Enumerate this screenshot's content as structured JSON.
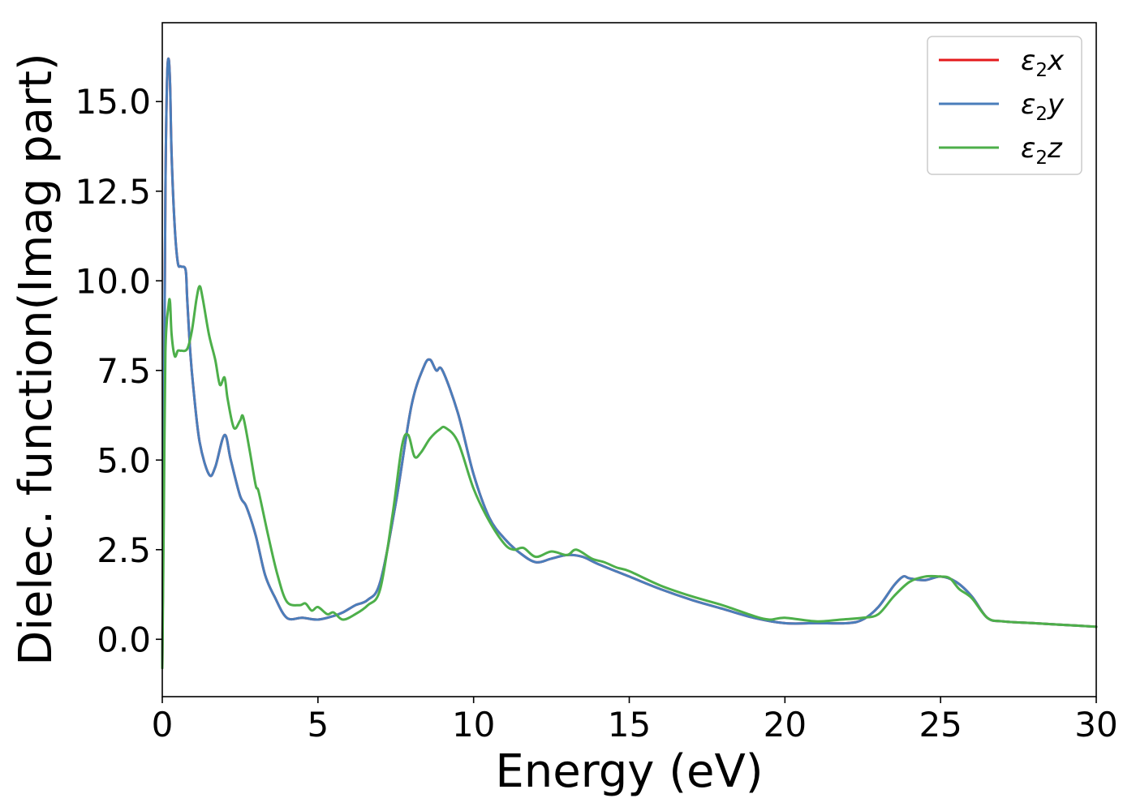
{
  "chart_data": {
    "type": "line",
    "title": "",
    "xlabel": "Energy (eV)",
    "ylabel": "Dielec. function(Imag part)",
    "xlim": [
      0,
      30
    ],
    "ylim": [
      -1.6,
      17.2
    ],
    "xticks": [
      0,
      5,
      10,
      15,
      20,
      25,
      30
    ],
    "xtick_labels": [
      "0",
      "5",
      "10",
      "15",
      "20",
      "25",
      "30"
    ],
    "yticks": [
      0.0,
      2.5,
      5.0,
      7.5,
      10.0,
      12.5,
      15.0
    ],
    "ytick_labels": [
      "0.0",
      "2.5",
      "5.0",
      "7.5",
      "10.0",
      "12.5",
      "15.0"
    ],
    "grid": false,
    "legend_position": "top-right",
    "series": [
      {
        "name": "ε2x",
        "legend_main": "ε",
        "legend_sub": "2",
        "legend_tail": "x",
        "color": "#e41a1c",
        "x": [
          0,
          0.05,
          0.1,
          0.15,
          0.2,
          0.25,
          0.3,
          0.4,
          0.5,
          0.6,
          0.75,
          0.8,
          0.9,
          1.0,
          1.2,
          1.5,
          1.7,
          2.0,
          2.2,
          2.5,
          2.7,
          3.0,
          3.3,
          3.6,
          4.0,
          4.5,
          5.0,
          5.5,
          5.8,
          6.2,
          6.6,
          7.0,
          7.5,
          8.0,
          8.4,
          8.6,
          8.8,
          9.0,
          9.5,
          10.0,
          10.5,
          11.0,
          11.5,
          12.0,
          12.5,
          13.0,
          13.5,
          14.0,
          15.0,
          16.0,
          17.0,
          18.0,
          19.0,
          20.0,
          21.0,
          22.0,
          22.5,
          23.0,
          23.5,
          23.8,
          24.0,
          24.5,
          25.0,
          25.5,
          26.0,
          26.5,
          27.0,
          28.0,
          29.0,
          30.0
        ],
        "values": [
          -0.8,
          5.5,
          12.5,
          15.5,
          16.2,
          15.5,
          13.5,
          11.5,
          10.5,
          10.4,
          10.3,
          9.5,
          8.0,
          7.0,
          5.5,
          4.6,
          4.8,
          5.7,
          5.0,
          4.0,
          3.7,
          2.9,
          1.8,
          1.2,
          0.6,
          0.6,
          0.55,
          0.65,
          0.75,
          0.95,
          1.1,
          1.6,
          3.8,
          6.5,
          7.6,
          7.8,
          7.5,
          7.5,
          6.3,
          4.6,
          3.4,
          2.8,
          2.4,
          2.15,
          2.25,
          2.35,
          2.3,
          2.1,
          1.75,
          1.4,
          1.1,
          0.85,
          0.6,
          0.45,
          0.45,
          0.45,
          0.55,
          0.9,
          1.5,
          1.75,
          1.7,
          1.65,
          1.75,
          1.6,
          1.2,
          0.6,
          0.5,
          0.45,
          0.4,
          0.35
        ]
      },
      {
        "name": "ε2y",
        "legend_main": "ε",
        "legend_sub": "2",
        "legend_tail": "y",
        "color": "#4a7ebb",
        "x": [
          0,
          0.05,
          0.1,
          0.15,
          0.2,
          0.25,
          0.3,
          0.4,
          0.5,
          0.6,
          0.75,
          0.8,
          0.9,
          1.0,
          1.2,
          1.5,
          1.7,
          2.0,
          2.2,
          2.5,
          2.7,
          3.0,
          3.3,
          3.6,
          4.0,
          4.5,
          5.0,
          5.5,
          5.8,
          6.2,
          6.6,
          7.0,
          7.5,
          8.0,
          8.4,
          8.6,
          8.8,
          9.0,
          9.5,
          10.0,
          10.5,
          11.0,
          11.5,
          12.0,
          12.5,
          13.0,
          13.5,
          14.0,
          15.0,
          16.0,
          17.0,
          18.0,
          19.0,
          20.0,
          21.0,
          22.0,
          22.5,
          23.0,
          23.5,
          23.8,
          24.0,
          24.5,
          25.0,
          25.5,
          26.0,
          26.5,
          27.0,
          28.0,
          29.0,
          30.0
        ],
        "values": [
          -0.8,
          5.5,
          12.5,
          15.5,
          16.2,
          15.5,
          13.5,
          11.5,
          10.5,
          10.4,
          10.3,
          9.5,
          8.0,
          7.0,
          5.5,
          4.6,
          4.8,
          5.7,
          5.0,
          4.0,
          3.7,
          2.9,
          1.8,
          1.2,
          0.6,
          0.6,
          0.55,
          0.65,
          0.75,
          0.95,
          1.1,
          1.6,
          3.8,
          6.5,
          7.6,
          7.8,
          7.5,
          7.5,
          6.3,
          4.6,
          3.4,
          2.8,
          2.4,
          2.15,
          2.25,
          2.35,
          2.3,
          2.1,
          1.75,
          1.4,
          1.1,
          0.85,
          0.6,
          0.45,
          0.45,
          0.45,
          0.55,
          0.9,
          1.5,
          1.75,
          1.7,
          1.65,
          1.75,
          1.6,
          1.2,
          0.6,
          0.5,
          0.45,
          0.4,
          0.35
        ]
      },
      {
        "name": "ε2z",
        "legend_main": "ε",
        "legend_sub": "2",
        "legend_tail": "z",
        "color": "#4daf4a",
        "x": [
          0,
          0.05,
          0.1,
          0.2,
          0.25,
          0.3,
          0.4,
          0.5,
          0.6,
          0.8,
          0.95,
          1.1,
          1.2,
          1.3,
          1.5,
          1.7,
          1.85,
          2.0,
          2.1,
          2.3,
          2.5,
          2.6,
          2.8,
          3.0,
          3.1,
          3.4,
          3.7,
          4.0,
          4.4,
          4.6,
          4.8,
          5.0,
          5.3,
          5.5,
          5.8,
          6.2,
          6.6,
          7.0,
          7.4,
          7.7,
          7.9,
          8.1,
          8.3,
          8.6,
          8.9,
          9.1,
          9.5,
          10.0,
          10.5,
          11.0,
          11.3,
          11.6,
          12.0,
          12.5,
          13.0,
          13.3,
          13.8,
          14.2,
          14.6,
          15.0,
          16.0,
          17.0,
          18.0,
          19.0,
          19.5,
          20.0,
          21.0,
          21.8,
          22.5,
          23.0,
          23.5,
          24.0,
          24.5,
          25.0,
          25.3,
          25.6,
          26.0,
          26.5,
          27.0,
          28.0,
          29.0,
          30.0
        ],
        "values": [
          -0.8,
          3.5,
          8.0,
          9.3,
          9.4,
          8.5,
          7.9,
          8.05,
          8.05,
          8.1,
          8.6,
          9.5,
          9.85,
          9.5,
          8.5,
          7.8,
          7.1,
          7.3,
          6.7,
          5.9,
          6.1,
          6.2,
          5.3,
          4.3,
          4.1,
          2.9,
          1.8,
          1.05,
          0.95,
          1.0,
          0.8,
          0.9,
          0.7,
          0.75,
          0.55,
          0.7,
          0.95,
          1.4,
          3.5,
          5.4,
          5.7,
          5.1,
          5.2,
          5.6,
          5.85,
          5.9,
          5.5,
          4.2,
          3.3,
          2.65,
          2.5,
          2.55,
          2.3,
          2.45,
          2.35,
          2.5,
          2.25,
          2.15,
          2.0,
          1.9,
          1.5,
          1.2,
          0.95,
          0.65,
          0.55,
          0.6,
          0.5,
          0.55,
          0.6,
          0.7,
          1.2,
          1.6,
          1.75,
          1.75,
          1.7,
          1.4,
          1.15,
          0.6,
          0.5,
          0.45,
          0.4,
          0.35
        ]
      }
    ]
  }
}
